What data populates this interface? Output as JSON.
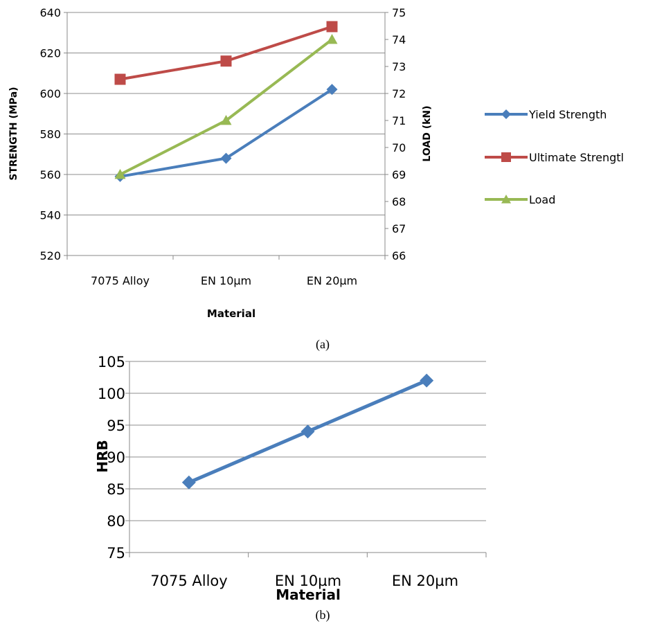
{
  "chart_data": [
    {
      "type": "line",
      "panel_label": "(a)",
      "categories": [
        "7075 Alloy",
        "EN 10µm",
        "EN 20µm"
      ],
      "xlabel": "Material",
      "ylabel": "STRENGTH (MPa)",
      "y2label": "LOAD (kN)",
      "ylim": [
        520,
        640
      ],
      "y2lim": [
        66,
        75
      ],
      "yticks": [
        "640",
        "620",
        "600",
        "580",
        "560",
        "540",
        "520"
      ],
      "y2ticks": [
        "75",
        "74",
        "73",
        "72",
        "71",
        "70",
        "69",
        "68",
        "67",
        "66"
      ],
      "grid": "horizontal",
      "legend_position": "right",
      "series": [
        {
          "name": "Yield Strength",
          "axis": "left",
          "values": [
            559,
            568,
            602
          ],
          "color": "#4a7ebb",
          "marker": "diamond"
        },
        {
          "name": "Ultimate Strengtl",
          "axis": "left",
          "values": [
            607,
            616,
            633
          ],
          "color": "#be4b48",
          "marker": "square"
        },
        {
          "name": "Load",
          "axis": "right",
          "values": [
            69,
            71,
            74
          ],
          "color": "#98b954",
          "marker": "triangle"
        }
      ]
    },
    {
      "type": "line",
      "panel_label": "(b)",
      "categories": [
        "7075 Alloy",
        "EN 10µm",
        "EN 20µm"
      ],
      "xlabel": "Material",
      "ylabel": "HRB",
      "ylim": [
        75,
        105
      ],
      "yticks": [
        "105",
        "100",
        "95",
        "90",
        "85",
        "80",
        "75"
      ],
      "grid": "horizontal",
      "series": [
        {
          "values": [
            86,
            94,
            102
          ],
          "color": "#4a7ebb",
          "marker": "diamond"
        }
      ]
    }
  ]
}
